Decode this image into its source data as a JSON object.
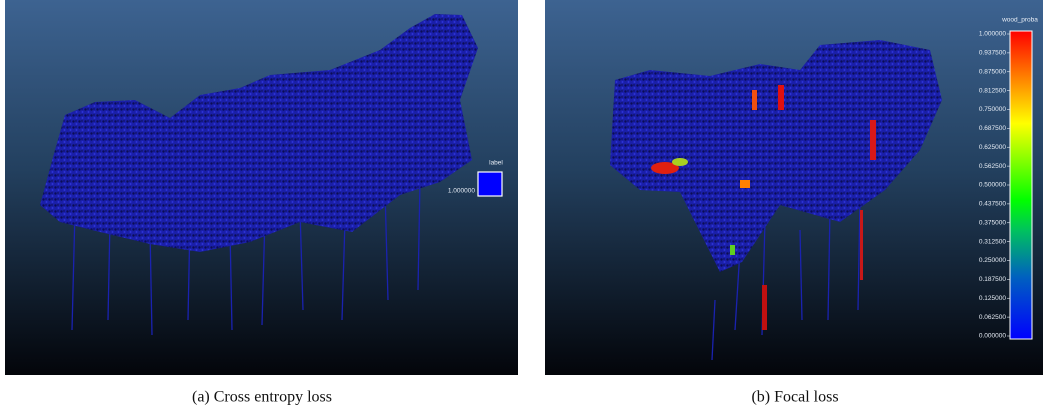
{
  "panels": [
    {
      "caption": "(a) Cross entropy loss",
      "legend_title": "label",
      "legend_value": "1.000000"
    },
    {
      "caption": "(b) Focal loss",
      "legend_title": "wood_proba",
      "scale_labels": [
        "1.000000",
        "0.937500",
        "0.875000",
        "0.812500",
        "0.750000",
        "0.687500",
        "0.625000",
        "0.562500",
        "0.500000",
        "0.437500",
        "0.375000",
        "0.312500",
        "0.250000",
        "0.187500",
        "0.125000",
        "0.062500",
        "0.000000"
      ]
    }
  ]
}
